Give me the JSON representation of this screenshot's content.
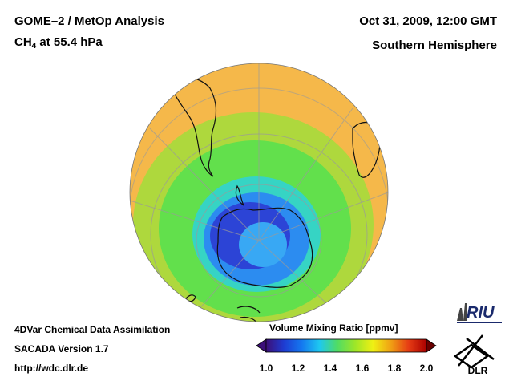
{
  "header": {
    "title_line1": "GOME–2 / MetOp Analysis",
    "species": "CH",
    "species_sub": "4",
    "level": " at 55.4 hPa",
    "date": "Oct 31, 2009, 12:00 GMT",
    "region": "Southern Hemisphere"
  },
  "footer": {
    "line1": "4DVar Chemical Data Assimilation",
    "line2": "SACADA Version 1.7",
    "line3": "http://wdc.dlr.de"
  },
  "colorbar": {
    "title": "Volume Mixing Ratio [ppmv]",
    "ticks": [
      "1.0",
      "1.2",
      "1.4",
      "1.6",
      "1.8",
      "2.0"
    ],
    "colors": [
      "#3c0f78",
      "#1e3cd2",
      "#1478f0",
      "#1ec8f0",
      "#50dc64",
      "#9ee628",
      "#f0f014",
      "#f0a014",
      "#e63c14",
      "#aa0000"
    ]
  },
  "logos": {
    "riu": "RIU",
    "dlr": "DLR"
  },
  "map": {
    "projection": "orthographic, south pole centered",
    "colors": {
      "ocean_high": "#f5b84a",
      "mid": "#6ee64a",
      "low": "#2a8cf0",
      "core": "#3a3ad8"
    }
  }
}
